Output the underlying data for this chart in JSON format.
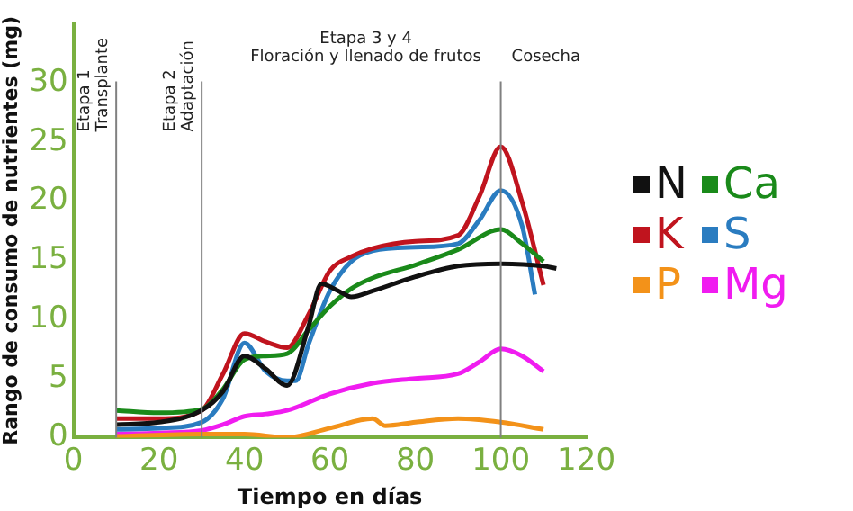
{
  "chart_data": {
    "type": "line",
    "xlabel": "Tiempo en días",
    "ylabel": "Rango de consumo de nutrientes (mg)",
    "xlim": [
      0,
      120
    ],
    "xticks": [
      0,
      20,
      40,
      60,
      80,
      100,
      120
    ],
    "ylim": [
      0,
      35
    ],
    "yticks": [
      0,
      5,
      10,
      15,
      20,
      25,
      30
    ],
    "grid": false,
    "legend": "right",
    "marker": "none",
    "line_style": "solid",
    "annotations": [
      "Etapa 3 y 4\nFloración y llenado de frutos"
    ],
    "ref_lines": [
      {
        "axis": "x",
        "value": 10,
        "label": "Etapa 1\nTransplante",
        "color": "#808080"
      },
      {
        "axis": "x",
        "value": 30,
        "label": "Etapa 2\nAdaptación",
        "color": "#808080"
      },
      {
        "axis": "x",
        "value": 100,
        "label": "Cosecha",
        "color": "#808080"
      }
    ],
    "series": [
      {
        "name": "N",
        "color": "#111111",
        "x": [
          10,
          20,
          30,
          35,
          40,
          45,
          50,
          55,
          58,
          62,
          65,
          70,
          80,
          90,
          100,
          110,
          113
        ],
        "values": [
          1.1,
          1.3,
          2.3,
          3.9,
          6.9,
          5.8,
          4.4,
          9.4,
          13.0,
          12.4,
          11.9,
          12.4,
          13.6,
          14.5,
          14.7,
          14.5,
          14.3
        ]
      },
      {
        "name": "Ca",
        "color": "#1a8a1a",
        "x": [
          10,
          20,
          30,
          35,
          40,
          45,
          50,
          55,
          60,
          65,
          70,
          80,
          90,
          100,
          105,
          110
        ],
        "values": [
          2.3,
          2.1,
          2.4,
          4.1,
          6.6,
          6.9,
          7.1,
          9.1,
          11.1,
          12.6,
          13.5,
          14.6,
          15.9,
          17.6,
          16.4,
          14.9
        ]
      },
      {
        "name": "K",
        "color": "#c0141e",
        "x": [
          10,
          20,
          30,
          35,
          40,
          45,
          50,
          55,
          60,
          65,
          70,
          80,
          90,
          95,
          100,
          105,
          110
        ],
        "values": [
          1.6,
          1.6,
          2.3,
          5.4,
          8.8,
          8.1,
          7.6,
          10.4,
          14.1,
          15.3,
          16.0,
          16.6,
          17.1,
          20.4,
          24.6,
          19.9,
          12.9
        ]
      },
      {
        "name": "S",
        "color": "#2a7cc0",
        "x": [
          10,
          20,
          30,
          35,
          40,
          45,
          50,
          52,
          55,
          60,
          65,
          70,
          80,
          90,
          95,
          100,
          105,
          108
        ],
        "values": [
          0.7,
          0.8,
          1.3,
          3.3,
          8.0,
          5.6,
          4.8,
          4.8,
          7.9,
          12.4,
          14.9,
          15.8,
          16.1,
          16.4,
          18.4,
          20.9,
          17.9,
          12.1
        ]
      },
      {
        "name": "P",
        "color": "#f39219",
        "x": [
          10,
          30,
          40,
          50,
          60,
          70,
          73,
          80,
          90,
          100,
          110
        ],
        "values": [
          0.1,
          0.3,
          0.3,
          0.0,
          0.8,
          1.6,
          1.0,
          1.3,
          1.6,
          1.3,
          0.7
        ]
      },
      {
        "name": "Mg",
        "color": "#f01cf0",
        "x": [
          10,
          20,
          30,
          35,
          40,
          45,
          50,
          60,
          70,
          80,
          90,
          95,
          100,
          105,
          110
        ],
        "values": [
          0.3,
          0.4,
          0.6,
          1.1,
          1.8,
          2.0,
          2.3,
          3.7,
          4.6,
          5.0,
          5.4,
          6.4,
          7.5,
          6.9,
          5.6
        ]
      }
    ]
  }
}
